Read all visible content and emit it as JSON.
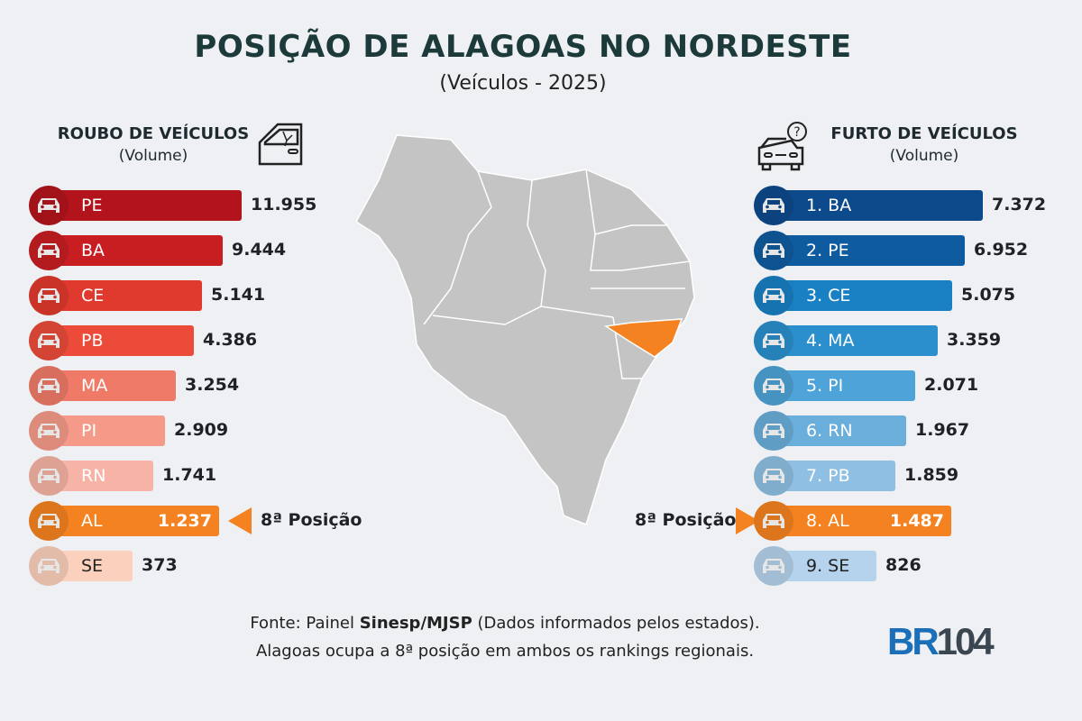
{
  "title": "POSIÇÃO DE ALAGOAS NO NORDESTE",
  "subtitle": "(Veículos - 2025)",
  "chart_data": [
    {
      "type": "bar",
      "orientation": "horizontal",
      "title": "ROUBO DE VEÍCULOS",
      "subtitle": "(Volume)",
      "icon": "broken-car-door-icon",
      "categories": [
        "PE",
        "BA",
        "CE",
        "PB",
        "MA",
        "PI",
        "RN",
        "AL",
        "SE"
      ],
      "values": [
        11955,
        9444,
        5141,
        4386,
        3254,
        2909,
        1741,
        1237,
        373
      ],
      "value_labels": [
        "11.955",
        "9.444",
        "5.141",
        "4.386",
        "3.254",
        "2.909",
        "1.741",
        "1.237",
        "373"
      ],
      "colors": [
        "#b3141c",
        "#c81e22",
        "#e0392d",
        "#ec4b3a",
        "#f07a68",
        "#f59a88",
        "#f7b4a6",
        "#f58220",
        "#fbd0bc"
      ],
      "highlight": {
        "category": "AL",
        "label": "8ª Posição"
      }
    },
    {
      "type": "bar",
      "orientation": "horizontal",
      "title": "FURTO DE VEÍCULOS",
      "subtitle": "(Volume)",
      "icon": "car-question-icon",
      "categories": [
        "1. BA",
        "2. PE",
        "3. CE",
        "4. MA",
        "5. PI",
        "6. RN",
        "7. PB",
        "8. AL",
        "9. SE"
      ],
      "values": [
        7372,
        6952,
        5075,
        3359,
        2071,
        1967,
        1859,
        1487,
        826
      ],
      "value_labels": [
        "7.372",
        "6.952",
        "5.075",
        "3.359",
        "2.071",
        "1.967",
        "1.859",
        "1.487",
        "826"
      ],
      "colors": [
        "#0d4a8c",
        "#0f5ba0",
        "#1a80c4",
        "#2a8fcc",
        "#4ea3d8",
        "#6aaedb",
        "#8fc0e3",
        "#f58220",
        "#b5d3ec"
      ],
      "highlight": {
        "category": "8. AL",
        "label": "8ª Posição"
      }
    }
  ],
  "map": {
    "highlight_state": "AL",
    "highlight_color": "#f58220",
    "base_color": "#c4c4c4"
  },
  "footer": {
    "line1_pre": "Fonte: Painel ",
    "line1_bold": "Sinesp/MJSP",
    "line1_post": " (Dados informados pelos estados).",
    "line2": "Alagoas ocupa a 8ª posição em ambos os rankings regionais."
  },
  "logo": {
    "text_br": "BR",
    "text_num": "104",
    "color_br": "#1a6fb8",
    "color_num": "#3a4650"
  }
}
